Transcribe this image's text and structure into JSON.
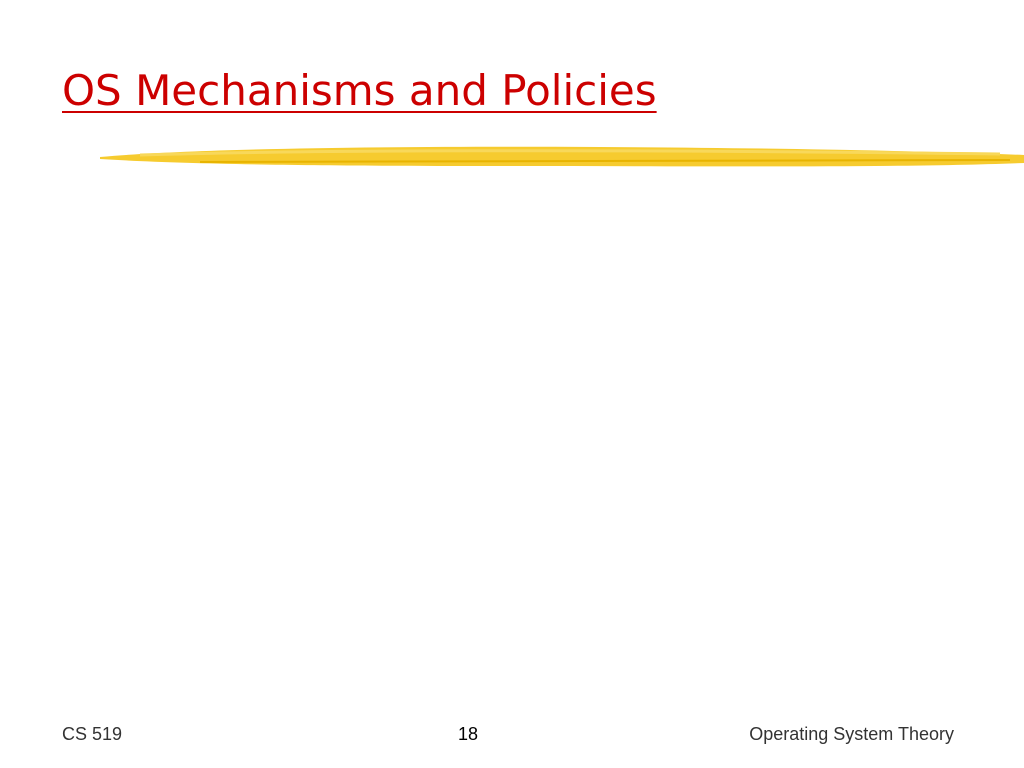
{
  "slide": {
    "title": "OS Mechanisms and Policies"
  },
  "footer": {
    "left": "CS 519",
    "center": "18",
    "right": "Operating System Theory"
  }
}
